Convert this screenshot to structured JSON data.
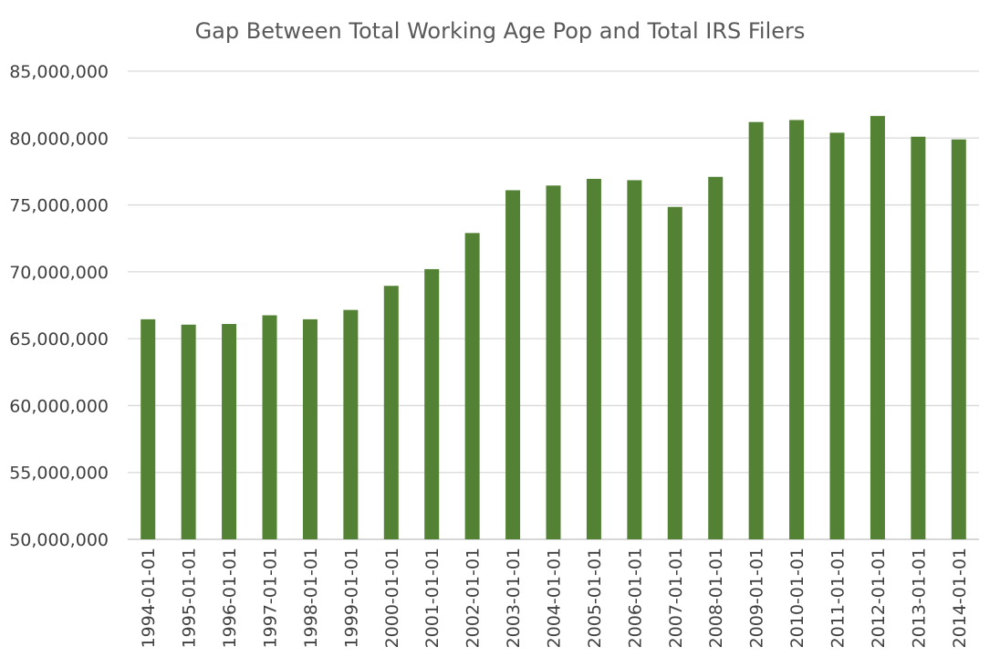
{
  "chart_data": {
    "type": "bar",
    "title": "Gap Between Total Working Age Pop and Total IRS Filers",
    "xlabel": "",
    "ylabel": "",
    "ylim": [
      50000000,
      85000000
    ],
    "y_ticks": [
      {
        "value": 50000000,
        "label": "50,000,000"
      },
      {
        "value": 55000000,
        "label": "55,000,000"
      },
      {
        "value": 60000000,
        "label": "60,000,000"
      },
      {
        "value": 65000000,
        "label": "65,000,000"
      },
      {
        "value": 70000000,
        "label": "70,000,000"
      },
      {
        "value": 75000000,
        "label": "75,000,000"
      },
      {
        "value": 80000000,
        "label": "80,000,000"
      },
      {
        "value": 85000000,
        "label": "85,000,000"
      }
    ],
    "grid": true,
    "legend": "none",
    "bar_color": "#548235",
    "categories": [
      "1994-01-01",
      "1995-01-01",
      "1996-01-01",
      "1997-01-01",
      "1998-01-01",
      "1999-01-01",
      "2000-01-01",
      "2001-01-01",
      "2002-01-01",
      "2003-01-01",
      "2004-01-01",
      "2005-01-01",
      "2006-01-01",
      "2007-01-01",
      "2008-01-01",
      "2009-01-01",
      "2010-01-01",
      "2011-01-01",
      "2012-01-01",
      "2013-01-01",
      "2014-01-01"
    ],
    "values": [
      66450000,
      66050000,
      66100000,
      66750000,
      66450000,
      67150000,
      68950000,
      70200000,
      72900000,
      76100000,
      76450000,
      76950000,
      76850000,
      74850000,
      77100000,
      81200000,
      81350000,
      80400000,
      81650000,
      80100000,
      79900000
    ]
  }
}
